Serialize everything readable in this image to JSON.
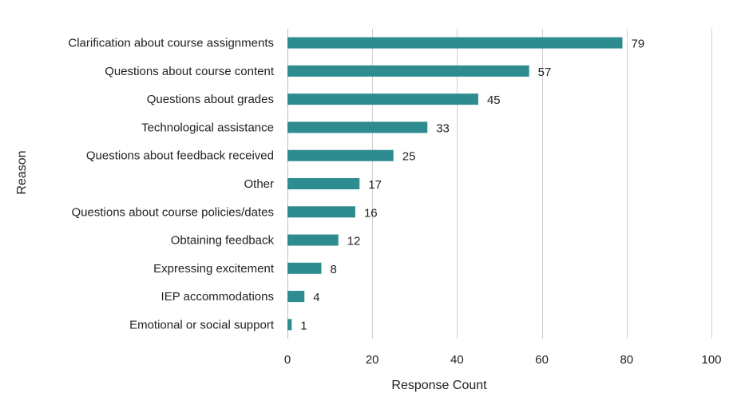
{
  "chart_data": {
    "type": "bar",
    "orientation": "horizontal",
    "categories": [
      "Clarification about course assignments",
      "Questions about course content",
      "Questions about grades",
      "Technological assistance",
      "Questions about feedback received",
      "Other",
      "Questions about course policies/dates",
      "Obtaining feedback",
      "Expressing excitement",
      "IEP accommodations",
      "Emotional or social support"
    ],
    "values": [
      79,
      57,
      45,
      33,
      25,
      17,
      16,
      12,
      8,
      4,
      1
    ],
    "data_labels": [
      "79",
      "57",
      "45",
      "33",
      "25",
      "17",
      "16",
      "12",
      "8",
      "4",
      "1"
    ],
    "xlabel": "Response Count",
    "ylabel": "Reason",
    "xlim": [
      0,
      100
    ],
    "x_ticks": [
      "0",
      "20",
      "40",
      "60",
      "80",
      "100"
    ],
    "grid": "vertical",
    "legend": "none",
    "colors": {
      "bar": "#2e8b8f",
      "grid": "#d0d0d0",
      "text": "#222222"
    }
  }
}
